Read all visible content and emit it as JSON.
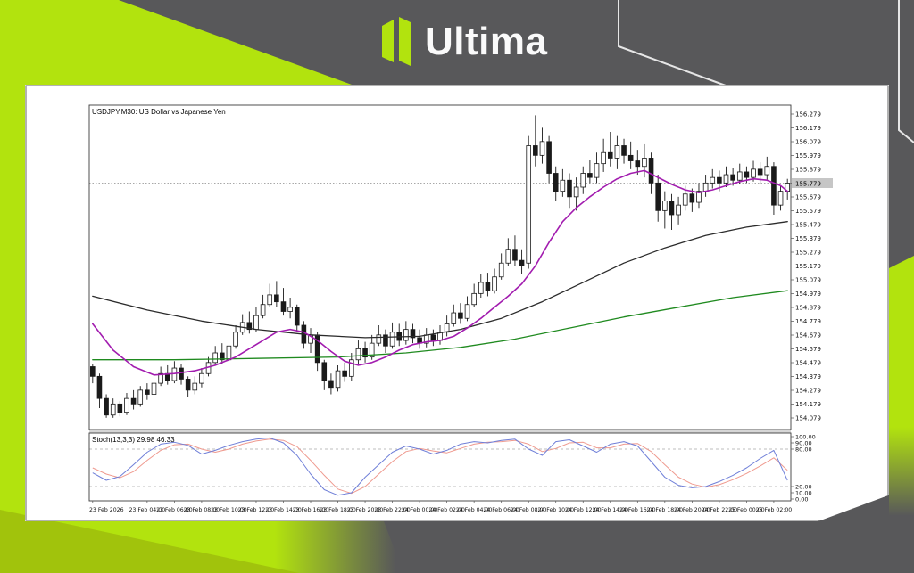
{
  "ui": {
    "logo_text": "Ultima"
  },
  "chart": {
    "symbol_label": "USDJPY,M30: US Dollar vs Japanese Yen",
    "indicator_label": "Stoch(13,3,3) 29.98 46.33",
    "current_price_label": "155.779"
  },
  "colors": {
    "accent": "#b2e30e",
    "accent_dark": "#9dbd0c",
    "bg": "#58585a",
    "panel": "#ffffff",
    "bull": "#ffffff",
    "bear": "#1a1a1a",
    "outline": "#1a1a1a",
    "ma_fast": "#a21caf",
    "ma_mid": "#2b2b2b",
    "ma_slow": "#1f8a1f",
    "stoch_main": "#6f7fd8",
    "stoch_signal": "#ef9a8f",
    "price_line": "#a8a8a8",
    "badge_bg": "#c6c6c6",
    "frame": "#3c3c3c",
    "level": "#bcbcbc"
  },
  "chart_data": {
    "type": "candlestick",
    "symbol": "USDJPY",
    "timeframe": "M30",
    "title": "USDJPY,M30: US Dollar vs Japanese Yen",
    "indicator": "Stoch(13,3,3) 29.98 46.33",
    "price_axis": {
      "top_label": 156.279,
      "bottom_label": 154.079,
      "step": 0.1,
      "count": 23,
      "current": 155.779
    },
    "stoch_axis": [
      [
        "100.00",
        100
      ],
      [
        "90.00",
        90
      ],
      [
        "80.00",
        80
      ],
      [
        "20.00",
        20
      ],
      [
        "10.00",
        10
      ],
      [
        "0.00",
        0
      ]
    ],
    "stoch_levels": [
      80,
      20
    ],
    "time_labels": [
      [
        0,
        "23 Feb 2026"
      ],
      [
        8,
        "23 Feb 04:00"
      ],
      [
        12,
        "23 Feb 06:00"
      ],
      [
        16,
        "23 Feb 08:00"
      ],
      [
        20,
        "23 Feb 10:00"
      ],
      [
        24,
        "23 Feb 12:00"
      ],
      [
        28,
        "23 Feb 14:00"
      ],
      [
        32,
        "23 Feb 16:00"
      ],
      [
        36,
        "23 Feb 18:00"
      ],
      [
        40,
        "23 Feb 20:00"
      ],
      [
        44,
        "23 Feb 22:00"
      ],
      [
        48,
        "24 Feb 00:00"
      ],
      [
        52,
        "24 Feb 02:00"
      ],
      [
        56,
        "24 Feb 04:00"
      ],
      [
        60,
        "24 Feb 06:00"
      ],
      [
        64,
        "24 Feb 08:00"
      ],
      [
        68,
        "24 Feb 10:00"
      ],
      [
        72,
        "24 Feb 12:00"
      ],
      [
        76,
        "24 Feb 14:00"
      ],
      [
        80,
        "24 Feb 16:00"
      ],
      [
        84,
        "24 Feb 18:00"
      ],
      [
        88,
        "24 Feb 20:00"
      ],
      [
        92,
        "24 Feb 22:00"
      ],
      [
        96,
        "25 Feb 00:00"
      ],
      [
        100,
        "25 Feb 02:00"
      ]
    ],
    "candles": [
      [
        154.45,
        154.47,
        154.33,
        154.38
      ],
      [
        154.38,
        154.4,
        154.15,
        154.22
      ],
      [
        154.22,
        154.25,
        154.08,
        154.1
      ],
      [
        154.1,
        154.22,
        154.08,
        154.18
      ],
      [
        154.18,
        154.2,
        154.09,
        154.12
      ],
      [
        154.12,
        154.26,
        154.1,
        154.22
      ],
      [
        154.22,
        154.28,
        154.14,
        154.18
      ],
      [
        154.18,
        154.31,
        154.16,
        154.28
      ],
      [
        154.28,
        154.33,
        154.21,
        154.25
      ],
      [
        154.25,
        154.37,
        154.23,
        154.33
      ],
      [
        154.33,
        154.45,
        154.31,
        154.4
      ],
      [
        154.4,
        154.46,
        154.32,
        154.35
      ],
      [
        154.35,
        154.49,
        154.33,
        154.44
      ],
      [
        154.44,
        154.47,
        154.32,
        154.36
      ],
      [
        154.36,
        154.38,
        154.23,
        154.28
      ],
      [
        154.28,
        154.38,
        154.25,
        154.33
      ],
      [
        154.33,
        154.44,
        154.3,
        154.4
      ],
      [
        154.4,
        154.52,
        154.38,
        154.48
      ],
      [
        154.48,
        154.6,
        154.46,
        154.55
      ],
      [
        154.55,
        154.62,
        154.47,
        154.5
      ],
      [
        154.5,
        154.65,
        154.48,
        154.6
      ],
      [
        154.6,
        154.75,
        154.58,
        154.7
      ],
      [
        154.7,
        154.83,
        154.68,
        154.77
      ],
      [
        154.77,
        154.85,
        154.69,
        154.72
      ],
      [
        154.72,
        154.88,
        154.7,
        154.82
      ],
      [
        154.82,
        154.97,
        154.8,
        154.9
      ],
      [
        154.9,
        155.05,
        154.88,
        154.97
      ],
      [
        154.97,
        155.07,
        154.88,
        154.92
      ],
      [
        154.92,
        155.02,
        154.82,
        154.85
      ],
      [
        154.85,
        154.95,
        154.8,
        154.88
      ],
      [
        154.88,
        154.9,
        154.7,
        154.75
      ],
      [
        154.75,
        154.78,
        154.58,
        154.62
      ],
      [
        154.62,
        154.73,
        154.55,
        154.68
      ],
      [
        154.68,
        154.7,
        154.42,
        154.48
      ],
      [
        154.48,
        154.5,
        154.28,
        154.35
      ],
      [
        154.35,
        154.4,
        154.25,
        154.3
      ],
      [
        154.3,
        154.46,
        154.27,
        154.42
      ],
      [
        154.42,
        154.48,
        154.34,
        154.38
      ],
      [
        154.38,
        154.55,
        154.35,
        154.5
      ],
      [
        154.5,
        154.64,
        154.47,
        154.58
      ],
      [
        154.58,
        154.63,
        154.48,
        154.52
      ],
      [
        154.52,
        154.68,
        154.5,
        154.62
      ],
      [
        154.62,
        154.75,
        154.6,
        154.68
      ],
      [
        154.68,
        154.72,
        154.55,
        154.6
      ],
      [
        154.6,
        154.77,
        154.58,
        154.7
      ],
      [
        154.7,
        154.76,
        154.6,
        154.64
      ],
      [
        154.64,
        154.78,
        154.61,
        154.72
      ],
      [
        154.72,
        154.76,
        154.62,
        154.66
      ],
      [
        154.66,
        154.72,
        154.58,
        154.62
      ],
      [
        154.62,
        154.73,
        154.59,
        154.68
      ],
      [
        154.68,
        154.72,
        154.6,
        154.64
      ],
      [
        154.64,
        154.75,
        154.61,
        154.7
      ],
      [
        154.7,
        154.82,
        154.67,
        154.76
      ],
      [
        154.76,
        154.9,
        154.74,
        154.84
      ],
      [
        154.84,
        154.91,
        154.76,
        154.8
      ],
      [
        154.8,
        154.96,
        154.78,
        154.9
      ],
      [
        154.9,
        155.05,
        154.88,
        154.98
      ],
      [
        154.98,
        155.12,
        154.95,
        155.06
      ],
      [
        155.06,
        155.13,
        154.96,
        155.0
      ],
      [
        155.0,
        155.16,
        154.98,
        155.1
      ],
      [
        155.1,
        155.27,
        155.08,
        155.2
      ],
      [
        155.2,
        155.38,
        155.18,
        155.3
      ],
      [
        155.3,
        155.4,
        155.18,
        155.22
      ],
      [
        155.22,
        155.3,
        155.12,
        155.18
      ],
      [
        155.2,
        156.12,
        155.16,
        156.05
      ],
      [
        156.05,
        156.27,
        155.9,
        155.98
      ],
      [
        155.98,
        156.18,
        155.92,
        156.08
      ],
      [
        156.08,
        156.12,
        155.78,
        155.85
      ],
      [
        155.85,
        155.9,
        155.65,
        155.72
      ],
      [
        155.72,
        155.88,
        155.68,
        155.8
      ],
      [
        155.8,
        155.85,
        155.6,
        155.68
      ],
      [
        155.68,
        155.82,
        155.58,
        155.75
      ],
      [
        155.75,
        155.9,
        155.7,
        155.85
      ],
      [
        155.85,
        155.95,
        155.78,
        155.82
      ],
      [
        155.82,
        156.0,
        155.78,
        155.92
      ],
      [
        155.92,
        156.1,
        155.86,
        156.0
      ],
      [
        156.0,
        156.15,
        155.9,
        155.96
      ],
      [
        155.96,
        156.12,
        155.88,
        156.05
      ],
      [
        156.05,
        156.1,
        155.92,
        155.98
      ],
      [
        155.98,
        156.08,
        155.88,
        155.94
      ],
      [
        155.94,
        156.02,
        155.84,
        155.9
      ],
      [
        155.9,
        156.06,
        155.82,
        155.96
      ],
      [
        155.96,
        156.0,
        155.7,
        155.78
      ],
      [
        155.78,
        155.84,
        155.5,
        155.58
      ],
      [
        155.58,
        155.72,
        155.45,
        155.65
      ],
      [
        155.65,
        155.7,
        155.44,
        155.55
      ],
      [
        155.55,
        155.68,
        155.48,
        155.62
      ],
      [
        155.62,
        155.76,
        155.58,
        155.7
      ],
      [
        155.7,
        155.74,
        155.57,
        155.64
      ],
      [
        155.64,
        155.78,
        155.6,
        155.72
      ],
      [
        155.72,
        155.84,
        155.68,
        155.78
      ],
      [
        155.78,
        155.88,
        155.74,
        155.82
      ],
      [
        155.82,
        155.87,
        155.72,
        155.78
      ],
      [
        155.78,
        155.9,
        155.75,
        155.84
      ],
      [
        155.84,
        155.89,
        155.76,
        155.8
      ],
      [
        155.8,
        155.92,
        155.77,
        155.86
      ],
      [
        155.86,
        155.9,
        155.78,
        155.82
      ],
      [
        155.82,
        155.94,
        155.79,
        155.88
      ],
      [
        155.88,
        155.93,
        155.78,
        155.84
      ],
      [
        155.84,
        155.97,
        155.8,
        155.9
      ],
      [
        155.9,
        155.93,
        155.55,
        155.62
      ],
      [
        155.62,
        155.76,
        155.58,
        155.72
      ],
      [
        155.72,
        155.81,
        155.66,
        155.779
      ]
    ],
    "ma_fast_purple": [
      [
        0,
        154.76
      ],
      [
        3,
        154.57
      ],
      [
        6,
        154.45
      ],
      [
        9,
        154.39
      ],
      [
        12,
        154.4
      ],
      [
        15,
        154.42
      ],
      [
        18,
        154.46
      ],
      [
        21,
        154.52
      ],
      [
        24,
        154.61
      ],
      [
        27,
        154.7
      ],
      [
        29,
        154.72
      ],
      [
        31,
        154.7
      ],
      [
        33,
        154.64
      ],
      [
        35,
        154.56
      ],
      [
        37,
        154.49
      ],
      [
        39,
        154.46
      ],
      [
        41,
        154.48
      ],
      [
        43,
        154.52
      ],
      [
        45,
        154.57
      ],
      [
        47,
        154.61
      ],
      [
        49,
        154.63
      ],
      [
        51,
        154.64
      ],
      [
        53,
        154.67
      ],
      [
        55,
        154.73
      ],
      [
        57,
        154.8
      ],
      [
        59,
        154.88
      ],
      [
        61,
        154.96
      ],
      [
        63,
        155.05
      ],
      [
        65,
        155.18
      ],
      [
        67,
        155.35
      ],
      [
        69,
        155.5
      ],
      [
        71,
        155.6
      ],
      [
        73,
        155.68
      ],
      [
        75,
        155.75
      ],
      [
        77,
        155.81
      ],
      [
        79,
        155.85
      ],
      [
        81,
        155.87
      ],
      [
        83,
        155.82
      ],
      [
        85,
        155.77
      ],
      [
        87,
        155.73
      ],
      [
        89,
        155.71
      ],
      [
        91,
        155.73
      ],
      [
        93,
        155.76
      ],
      [
        95,
        155.79
      ],
      [
        97,
        155.81
      ],
      [
        99,
        155.8
      ],
      [
        101,
        155.76
      ],
      [
        102,
        155.72
      ]
    ],
    "ma_mid_black": [
      [
        0,
        154.96
      ],
      [
        8,
        154.86
      ],
      [
        16,
        154.78
      ],
      [
        24,
        154.72
      ],
      [
        32,
        154.68
      ],
      [
        40,
        154.66
      ],
      [
        48,
        154.67
      ],
      [
        54,
        154.72
      ],
      [
        60,
        154.8
      ],
      [
        66,
        154.92
      ],
      [
        72,
        155.06
      ],
      [
        78,
        155.2
      ],
      [
        84,
        155.31
      ],
      [
        90,
        155.4
      ],
      [
        96,
        155.46
      ],
      [
        102,
        155.5
      ]
    ],
    "ma_slow_green": [
      [
        0,
        154.5
      ],
      [
        12,
        154.5
      ],
      [
        24,
        154.51
      ],
      [
        36,
        154.52
      ],
      [
        46,
        154.55
      ],
      [
        54,
        154.59
      ],
      [
        62,
        154.65
      ],
      [
        70,
        154.73
      ],
      [
        78,
        154.81
      ],
      [
        86,
        154.88
      ],
      [
        94,
        154.95
      ],
      [
        102,
        155.0
      ]
    ],
    "stoch": [
      [
        0,
        42,
        50
      ],
      [
        2,
        30,
        40
      ],
      [
        4,
        36,
        34
      ],
      [
        6,
        55,
        44
      ],
      [
        8,
        75,
        62
      ],
      [
        10,
        88,
        78
      ],
      [
        12,
        91,
        87
      ],
      [
        14,
        86,
        88
      ],
      [
        16,
        72,
        80
      ],
      [
        18,
        78,
        75
      ],
      [
        20,
        86,
        80
      ],
      [
        22,
        92,
        88
      ],
      [
        24,
        96,
        93
      ],
      [
        26,
        98,
        96
      ],
      [
        28,
        90,
        94
      ],
      [
        30,
        70,
        84
      ],
      [
        32,
        40,
        62
      ],
      [
        34,
        15,
        38
      ],
      [
        36,
        6,
        16
      ],
      [
        38,
        10,
        9
      ],
      [
        40,
        35,
        20
      ],
      [
        42,
        55,
        40
      ],
      [
        44,
        75,
        60
      ],
      [
        46,
        85,
        76
      ],
      [
        48,
        80,
        81
      ],
      [
        50,
        72,
        77
      ],
      [
        52,
        78,
        74
      ],
      [
        54,
        88,
        81
      ],
      [
        56,
        92,
        88
      ],
      [
        58,
        90,
        91
      ],
      [
        60,
        94,
        92
      ],
      [
        62,
        96,
        94
      ],
      [
        64,
        80,
        88
      ],
      [
        66,
        70,
        76
      ],
      [
        68,
        92,
        81
      ],
      [
        70,
        95,
        90
      ],
      [
        72,
        85,
        91
      ],
      [
        74,
        75,
        82
      ],
      [
        76,
        88,
        82
      ],
      [
        78,
        92,
        88
      ],
      [
        80,
        85,
        89
      ],
      [
        82,
        60,
        76
      ],
      [
        84,
        35,
        55
      ],
      [
        86,
        22,
        35
      ],
      [
        88,
        18,
        24
      ],
      [
        90,
        20,
        19
      ],
      [
        92,
        28,
        23
      ],
      [
        94,
        38,
        31
      ],
      [
        96,
        50,
        41
      ],
      [
        98,
        65,
        53
      ],
      [
        100,
        78,
        66
      ],
      [
        102,
        30,
        46
      ]
    ]
  }
}
